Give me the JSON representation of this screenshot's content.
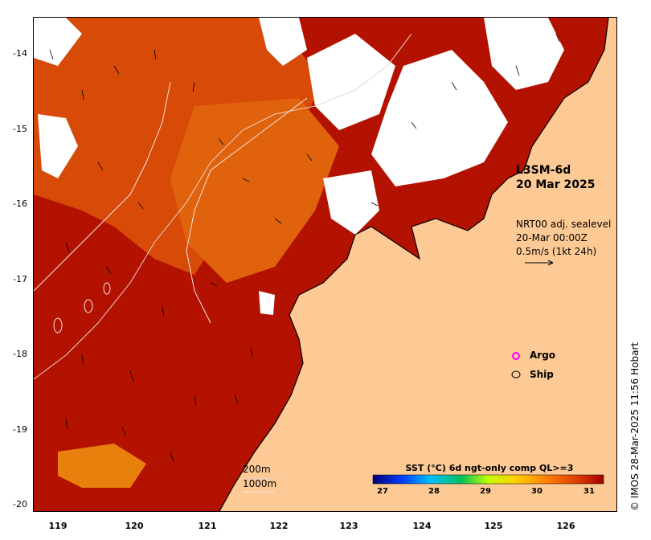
{
  "map": {
    "product_line1": "L3SM-6d",
    "product_line2": "20 Mar 2025",
    "current_line1": "NRT00 adj. sealevel",
    "current_line2": "20-Mar 00:00Z",
    "current_line3": "0.5m/s (1kt 24h)",
    "legend": [
      {
        "label": "Argo",
        "color": "#ff00ff"
      },
      {
        "label": "Ship",
        "color": "#000000"
      }
    ],
    "scale": [
      "200m",
      "1000m"
    ],
    "colorbar": {
      "title": "SST (°C) 6d ngt-only comp QL>=3",
      "ticks": [
        "27",
        "28",
        "29",
        "30",
        "31"
      ],
      "colors": [
        "#00007a",
        "#0040ff",
        "#00c0ff",
        "#00c060",
        "#c0ff00",
        "#ffd000",
        "#ff8000",
        "#e04000",
        "#a00000"
      ]
    },
    "credit": "© IMOS 28-Mar-2025 11:56 Hobart",
    "y_ticks": [
      "-14",
      "-15",
      "-16",
      "-17",
      "-18",
      "-19",
      "-20"
    ],
    "x_ticks": [
      "119",
      "120",
      "121",
      "122",
      "123",
      "124",
      "125",
      "126"
    ],
    "colors": {
      "land": "#fdc994",
      "sea_warm": "#b31200",
      "sea_mid": "#d84a08",
      "cloud": "#ffffff"
    }
  }
}
